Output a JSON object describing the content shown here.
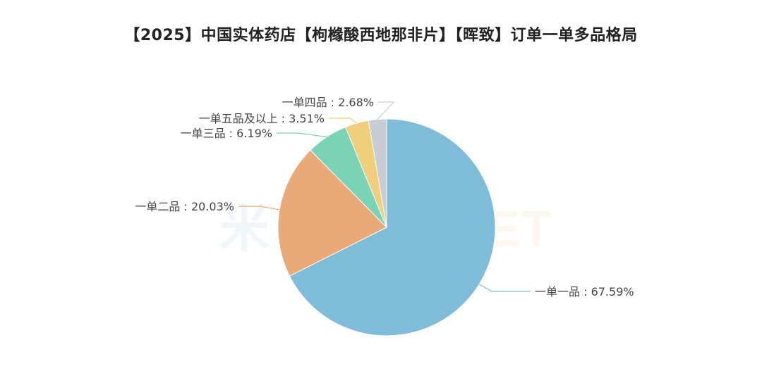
{
  "chart_data": {
    "type": "pie",
    "title": "【2025】中国实体药店【枸橼酸西地那非片】【晖致】订单一单多品格局",
    "slices": [
      {
        "label": "一单一品",
        "value": 67.59,
        "display": "一单一品 : 67.59%",
        "color": "#7fbcd9"
      },
      {
        "label": "一单二品",
        "value": 20.03,
        "display": "一单二品 : 20.03%",
        "color": "#eaa978"
      },
      {
        "label": "一单三品",
        "value": 6.19,
        "display": "一单三品 : 6.19%",
        "color": "#79d3b4"
      },
      {
        "label": "一单五品及以上",
        "value": 3.51,
        "display": "一单五品及以上 : 3.51%",
        "color": "#efcf79"
      },
      {
        "label": "一单四品",
        "value": 2.68,
        "display": "一单四品 : 2.68%",
        "color": "#c8ccd4"
      }
    ],
    "legend": "none",
    "watermark": "米内网 MENET"
  }
}
